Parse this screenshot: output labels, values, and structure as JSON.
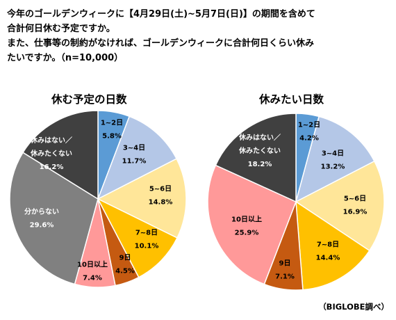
{
  "question": {
    "lines": [
      "今年のゴールデンウィークに【4月29日(土)~5月7日(日)】の期間を含めて",
      "合計何日休む予定ですか。",
      "また、仕事等の制約がなければ、ゴールデンウィークに合計何日くらい休み",
      "たいですか。（n=10,000）"
    ]
  },
  "source": "（BIGLOBE調べ）",
  "colors": {
    "1-2": "#5b9bd5",
    "3-4": "#b4c7e7",
    "5-6": "#ffe699",
    "7-8": "#ffc000",
    "9": "#c55a11",
    "10plus": "#ff9999",
    "unknown": "#808080",
    "no_holiday": "#404040"
  },
  "chart_data": [
    {
      "type": "pie",
      "title": "休む予定の日数",
      "slices": [
        {
          "key": "1-2",
          "label": "1~2日",
          "value": 5.8,
          "display": "5.8%"
        },
        {
          "key": "3-4",
          "label": "3~4日",
          "value": 11.7,
          "display": "11.7%"
        },
        {
          "key": "5-6",
          "label": "5~6日",
          "value": 14.8,
          "display": "14.8%"
        },
        {
          "key": "7-8",
          "label": "7~8日",
          "value": 10.1,
          "display": "10.1%"
        },
        {
          "key": "9",
          "label": "9日",
          "value": 4.5,
          "display": "4.5%"
        },
        {
          "key": "10plus",
          "label": "10日以上",
          "value": 7.4,
          "display": "7.4%"
        },
        {
          "key": "unknown",
          "label": "分からない",
          "value": 29.6,
          "display": "29.6%"
        },
        {
          "key": "no_holiday",
          "label": "休みはない／休みたくない",
          "value": 16.2,
          "display": "16.2%"
        }
      ]
    },
    {
      "type": "pie",
      "title": "休みたい日数",
      "slices": [
        {
          "key": "1-2",
          "label": "1~2日",
          "value": 4.2,
          "display": "4.2%"
        },
        {
          "key": "3-4",
          "label": "3~4日",
          "value": 13.2,
          "display": "13.2%"
        },
        {
          "key": "5-6",
          "label": "5~6日",
          "value": 16.9,
          "display": "16.9%"
        },
        {
          "key": "7-8",
          "label": "7~8日",
          "value": 14.4,
          "display": "14.4%"
        },
        {
          "key": "9",
          "label": "9日",
          "value": 7.1,
          "display": "7.1%"
        },
        {
          "key": "10plus",
          "label": "10日以上",
          "value": 25.9,
          "display": "25.9%"
        },
        {
          "key": "no_holiday",
          "label": "休みはない／休みたくない",
          "value": 18.2,
          "display": "18.2%"
        }
      ]
    }
  ]
}
